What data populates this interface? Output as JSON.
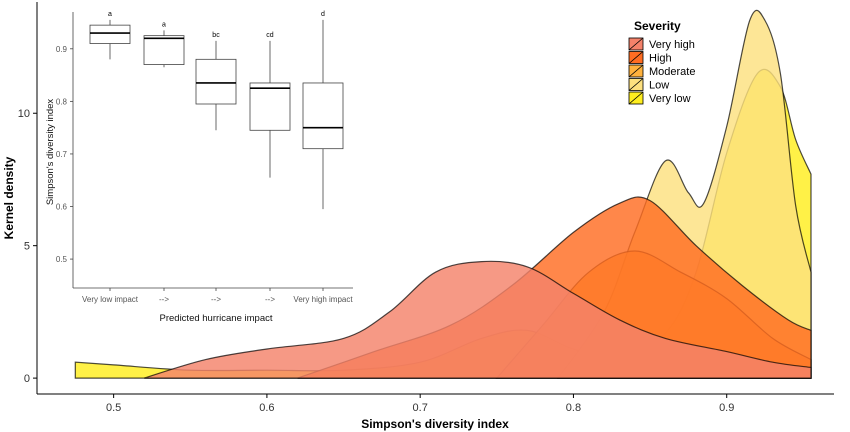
{
  "chart_data": [
    {
      "type": "area",
      "title": "",
      "xlabel": "Simpson's diversity index",
      "ylabel": "Kernel density",
      "xlim": [
        0.45,
        0.97
      ],
      "ylim": [
        -0.6,
        14.2
      ],
      "x_ticks": [
        "0.5",
        "0.6",
        "0.7",
        "0.8",
        "0.9"
      ],
      "y_ticks": [
        "0",
        "5",
        "10"
      ],
      "grid": false,
      "legend": {
        "title": "Severity",
        "position": "top-right",
        "entries": [
          "Very high",
          "High",
          "Moderate",
          "Low",
          "Very low"
        ]
      },
      "colors": {
        "Very high": "#f4826a",
        "High": "#ff6d22",
        "Moderate": "#ffb23d",
        "Low": "#fde07f",
        "Very low": "#ffee1f"
      },
      "series": [
        {
          "name": "Very low",
          "x": [
            0.475,
            0.5,
            0.55,
            0.6,
            0.65,
            0.7,
            0.74,
            0.77,
            0.8,
            0.83,
            0.86,
            0.88,
            0.9,
            0.92,
            0.935,
            0.945,
            0.955
          ],
          "y": [
            0.6,
            0.5,
            0.3,
            0.3,
            0.3,
            0.6,
            1.5,
            1.8,
            1.1,
            0.8,
            1.7,
            4.0,
            8.5,
            11.5,
            11.0,
            9.0,
            7.7
          ]
        },
        {
          "name": "Low",
          "x": [
            0.79,
            0.82,
            0.84,
            0.86,
            0.875,
            0.885,
            0.9,
            0.915,
            0.925,
            0.935,
            0.945,
            0.955
          ],
          "y": [
            0.0,
            2.5,
            5.5,
            8.2,
            7.0,
            6.6,
            9.5,
            13.5,
            13.5,
            11.5,
            6.5,
            4.0
          ]
        },
        {
          "name": "Moderate",
          "x": [
            0.75,
            0.78,
            0.81,
            0.84,
            0.87,
            0.9,
            0.93,
            0.955
          ],
          "y": [
            0.0,
            2.0,
            4.0,
            4.8,
            4.0,
            3.0,
            1.5,
            0.7
          ]
        },
        {
          "name": "High",
          "x": [
            0.62,
            0.67,
            0.72,
            0.76,
            0.8,
            0.83,
            0.85,
            0.88,
            0.91,
            0.94,
            0.955
          ],
          "y": [
            0.0,
            1.0,
            2.0,
            3.5,
            5.5,
            6.6,
            6.7,
            5.0,
            3.5,
            2.2,
            1.8
          ]
        },
        {
          "name": "Very high",
          "x": [
            0.52,
            0.56,
            0.6,
            0.65,
            0.68,
            0.71,
            0.74,
            0.77,
            0.8,
            0.83,
            0.86,
            0.9,
            0.93,
            0.955
          ],
          "y": [
            0.0,
            0.7,
            1.1,
            1.5,
            2.5,
            4.0,
            4.4,
            4.2,
            3.2,
            2.2,
            1.5,
            1.0,
            0.6,
            0.4
          ]
        }
      ]
    },
    {
      "type": "boxplot",
      "title": "",
      "xlabel": "Predicted hurricane impact",
      "ylabel": "Simpson's diversity index",
      "ylim": [
        0.445,
        0.97
      ],
      "y_ticks": [
        "0.5",
        "0.6",
        "0.7",
        "0.8",
        "0.9"
      ],
      "grid": false,
      "boxes": [
        {
          "label": "Very low impact",
          "sig": "a",
          "whislo": 0.88,
          "q1": 0.91,
          "median": 0.93,
          "q3": 0.945,
          "whishi": 0.955
        },
        {
          "label": "-->",
          "sig": "a",
          "whislo": 0.865,
          "q1": 0.87,
          "median": 0.92,
          "q3": 0.925,
          "whishi": 0.935
        },
        {
          "label": "-->",
          "sig": "bc",
          "whislo": 0.745,
          "q1": 0.795,
          "median": 0.835,
          "q3": 0.88,
          "whishi": 0.915
        },
        {
          "label": "-->",
          "sig": "cd",
          "whislo": 0.655,
          "q1": 0.745,
          "median": 0.825,
          "q3": 0.835,
          "whishi": 0.915
        },
        {
          "label": "Very high impact",
          "sig": "d",
          "whislo": 0.595,
          "q1": 0.71,
          "median": 0.75,
          "q3": 0.835,
          "whishi": 0.955
        }
      ]
    }
  ]
}
